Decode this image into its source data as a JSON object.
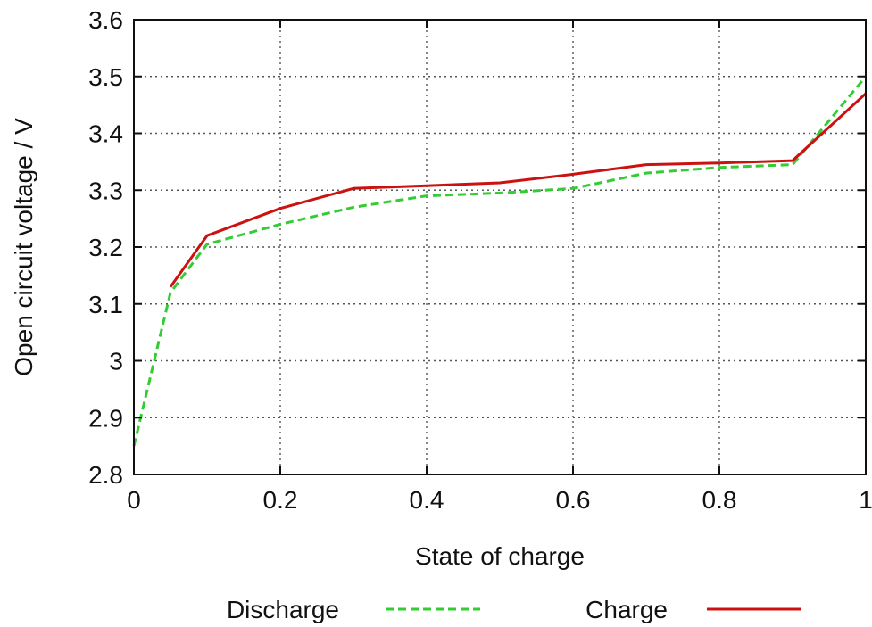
{
  "chart_data": {
    "type": "line",
    "title": "",
    "xlabel": "State of charge",
    "ylabel": "Open circuit voltage / V",
    "xlim": [
      0,
      1
    ],
    "ylim": [
      2.8,
      3.6
    ],
    "x_ticks": [
      0,
      0.2,
      0.4,
      0.6,
      0.8,
      1
    ],
    "x_tick_labels": [
      "0",
      "0.2",
      "0.4",
      "0.6",
      "0.8",
      "1"
    ],
    "y_ticks": [
      2.8,
      2.9,
      3.0,
      3.1,
      3.2,
      3.3,
      3.4,
      3.5,
      3.6
    ],
    "y_tick_labels": [
      "2.8",
      "2.9",
      "3",
      "3.1",
      "3.2",
      "3.3",
      "3.4",
      "3.5",
      "3.6"
    ],
    "grid": true,
    "legend_position": "bottom",
    "series": [
      {
        "name": "Discharge",
        "color": "#33cc33",
        "style": "dashed",
        "x": [
          0,
          0.05,
          0.1,
          0.2,
          0.3,
          0.4,
          0.5,
          0.6,
          0.7,
          0.8,
          0.9,
          1.0
        ],
        "y": [
          2.85,
          3.12,
          3.205,
          3.24,
          3.27,
          3.29,
          3.295,
          3.303,
          3.33,
          3.34,
          3.345,
          3.5
        ]
      },
      {
        "name": "Charge",
        "color": "#cc1111",
        "style": "solid",
        "x": [
          0.05,
          0.1,
          0.2,
          0.3,
          0.4,
          0.5,
          0.6,
          0.7,
          0.8,
          0.9,
          1.0
        ],
        "y": [
          3.13,
          3.22,
          3.268,
          3.303,
          3.308,
          3.313,
          3.328,
          3.345,
          3.348,
          3.352,
          3.47
        ]
      }
    ]
  }
}
